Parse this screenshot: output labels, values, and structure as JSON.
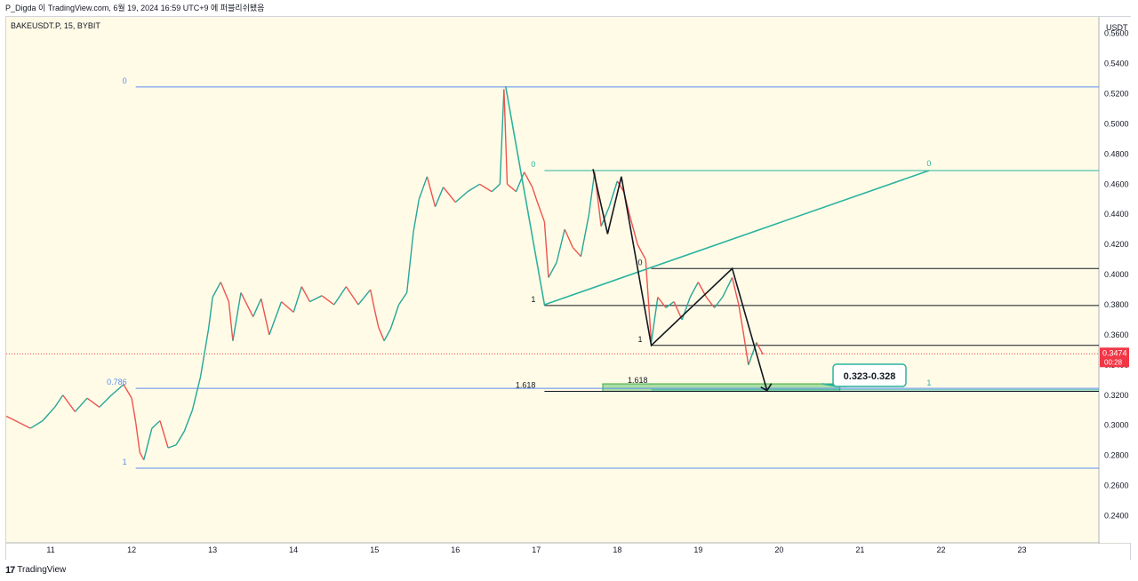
{
  "header": {
    "author": "P_Digda",
    "caption": "이 TradingView.com, 6월 19, 2024 16:59 UTC+9 에 퍼블리쉬됐음"
  },
  "symbol_label": "BAKEUSDT.P, 15, BYBIT",
  "footer": {
    "logo_glyph": "17",
    "brand": "TradingView"
  },
  "chart_data": {
    "type": "line",
    "currency": "USDT",
    "ylim": [
      0.222,
      0.571
    ],
    "xlim": [
      10.45,
      23.95
    ],
    "yticks": [
      "0.5600",
      "0.5400",
      "0.5200",
      "0.5000",
      "0.4800",
      "0.4600",
      "0.4400",
      "0.4200",
      "0.4000",
      "0.3800",
      "0.3600",
      "0.3400",
      "0.3200",
      "0.3000",
      "0.2800",
      "0.2600",
      "0.2400"
    ],
    "xticks": [
      "11",
      "12",
      "13",
      "14",
      "15",
      "16",
      "17",
      "18",
      "19",
      "20",
      "21",
      "22",
      "23"
    ],
    "last_price": {
      "value": "0.3474",
      "countdown": "00:28"
    },
    "price_path": [
      [
        10.45,
        0.306
      ],
      [
        10.6,
        0.302
      ],
      [
        10.75,
        0.298
      ],
      [
        10.9,
        0.303
      ],
      [
        11.05,
        0.312
      ],
      [
        11.15,
        0.32
      ],
      [
        11.3,
        0.309
      ],
      [
        11.45,
        0.318
      ],
      [
        11.6,
        0.312
      ],
      [
        11.75,
        0.32
      ],
      [
        11.9,
        0.327
      ],
      [
        12.0,
        0.318
      ],
      [
        12.05,
        0.302
      ],
      [
        12.1,
        0.282
      ],
      [
        12.15,
        0.277
      ],
      [
        12.25,
        0.298
      ],
      [
        12.35,
        0.303
      ],
      [
        12.45,
        0.285
      ],
      [
        12.55,
        0.287
      ],
      [
        12.65,
        0.296
      ],
      [
        12.75,
        0.31
      ],
      [
        12.85,
        0.332
      ],
      [
        12.95,
        0.364
      ],
      [
        13.0,
        0.385
      ],
      [
        13.1,
        0.395
      ],
      [
        13.2,
        0.382
      ],
      [
        13.25,
        0.356
      ],
      [
        13.35,
        0.388
      ],
      [
        13.5,
        0.372
      ],
      [
        13.6,
        0.384
      ],
      [
        13.7,
        0.36
      ],
      [
        13.85,
        0.382
      ],
      [
        14.0,
        0.375
      ],
      [
        14.1,
        0.392
      ],
      [
        14.2,
        0.382
      ],
      [
        14.35,
        0.386
      ],
      [
        14.5,
        0.38
      ],
      [
        14.65,
        0.392
      ],
      [
        14.8,
        0.38
      ],
      [
        14.95,
        0.39
      ],
      [
        15.0,
        0.377
      ],
      [
        15.05,
        0.365
      ],
      [
        15.12,
        0.356
      ],
      [
        15.2,
        0.364
      ],
      [
        15.3,
        0.38
      ],
      [
        15.4,
        0.388
      ],
      [
        15.48,
        0.428
      ],
      [
        15.55,
        0.45
      ],
      [
        15.65,
        0.465
      ],
      [
        15.75,
        0.445
      ],
      [
        15.85,
        0.458
      ],
      [
        16.0,
        0.448
      ],
      [
        16.15,
        0.455
      ],
      [
        16.3,
        0.46
      ],
      [
        16.45,
        0.455
      ],
      [
        16.55,
        0.46
      ],
      [
        16.6,
        0.523
      ],
      [
        16.64,
        0.46
      ],
      [
        16.75,
        0.455
      ],
      [
        16.85,
        0.468
      ],
      [
        16.95,
        0.458
      ],
      [
        17.0,
        0.45
      ],
      [
        17.1,
        0.435
      ],
      [
        17.15,
        0.398
      ],
      [
        17.25,
        0.408
      ],
      [
        17.35,
        0.43
      ],
      [
        17.45,
        0.418
      ],
      [
        17.55,
        0.412
      ],
      [
        17.65,
        0.44
      ],
      [
        17.72,
        0.468
      ],
      [
        17.8,
        0.432
      ],
      [
        17.9,
        0.445
      ],
      [
        18.0,
        0.462
      ],
      [
        18.08,
        0.455
      ],
      [
        18.15,
        0.44
      ],
      [
        18.25,
        0.42
      ],
      [
        18.35,
        0.41
      ],
      [
        18.42,
        0.355
      ],
      [
        18.5,
        0.385
      ],
      [
        18.6,
        0.378
      ],
      [
        18.7,
        0.382
      ],
      [
        18.8,
        0.37
      ],
      [
        18.9,
        0.385
      ],
      [
        19.0,
        0.395
      ],
      [
        19.1,
        0.385
      ],
      [
        19.2,
        0.378
      ],
      [
        19.3,
        0.385
      ],
      [
        19.42,
        0.398
      ],
      [
        19.5,
        0.38
      ],
      [
        19.55,
        0.364
      ],
      [
        19.62,
        0.34
      ],
      [
        19.72,
        0.355
      ],
      [
        19.8,
        0.347
      ]
    ],
    "swing_path": [
      [
        16.62,
        0.525
      ],
      [
        17.1,
        0.38
      ],
      [
        21.85,
        0.469
      ]
    ],
    "wave_path": [
      [
        17.7,
        0.47
      ],
      [
        17.88,
        0.427
      ],
      [
        18.05,
        0.465
      ],
      [
        18.42,
        0.353
      ],
      [
        19.42,
        0.404
      ],
      [
        19.85,
        0.323
      ]
    ],
    "levels": [
      {
        "y": 0.5245,
        "x1": 12.05,
        "x2": 23.95,
        "color": "#5b8def",
        "left_label": "0"
      },
      {
        "y": 0.3245,
        "x1": 12.05,
        "x2": 23.95,
        "color": "#5b8def",
        "left_label": "0.786"
      },
      {
        "y": 0.2715,
        "x1": 12.05,
        "x2": 23.95,
        "color": "#5b8def",
        "left_label": "1"
      },
      {
        "y": 0.469,
        "x1": 17.1,
        "x2": 23.95,
        "color": "#2bb3a0",
        "left_label": "0",
        "right_label": "0"
      },
      {
        "y": 0.404,
        "x1": 18.42,
        "x2": 23.95,
        "color": "#131722",
        "left_label": "0"
      },
      {
        "y": 0.3795,
        "x1": 17.1,
        "x2": 23.95,
        "color": "#131722",
        "left_label": "1"
      },
      {
        "y": 0.353,
        "x1": 18.42,
        "x2": 23.95,
        "color": "#131722",
        "left_label": "1"
      },
      {
        "y": 0.3225,
        "x1": 17.1,
        "x2": 23.95,
        "color": "#131722",
        "left_label": "1.618"
      },
      {
        "y": 0.3235,
        "x1": 18.42,
        "x2": 23.95,
        "color": "#2bb3a0",
        "right_label": "1"
      }
    ],
    "target_zone": {
      "x1": 17.82,
      "x2": 20.75,
      "y1": 0.3225,
      "y2": 0.3275,
      "label": "1.618"
    },
    "callout": {
      "text": "0.323-0.328",
      "color": "#2bb3a0"
    },
    "current_line_y": 0.3474
  }
}
